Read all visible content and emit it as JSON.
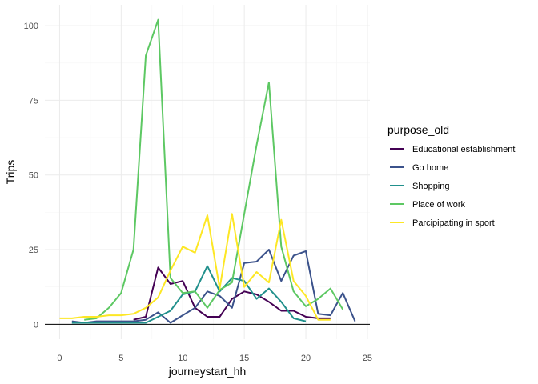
{
  "chart_data": {
    "type": "line",
    "xlabel": "journeystart_hh",
    "ylabel": "Trips",
    "xlim": [
      -1.2,
      25.2
    ],
    "ylim": [
      -5,
      107
    ],
    "x_ticks": [
      0,
      5,
      10,
      15,
      20,
      25
    ],
    "y_ticks": [
      0,
      25,
      50,
      75,
      100
    ],
    "grid": true,
    "legend": {
      "title": "purpose_old",
      "position": "right"
    },
    "series": [
      {
        "name": "Educational establishment",
        "color": "#440154",
        "x": [
          6,
          7,
          8,
          9,
          10,
          11,
          12,
          13,
          14,
          15,
          16,
          17,
          18,
          19,
          20,
          21,
          22
        ],
        "y": [
          1.5,
          2.5,
          19,
          13.5,
          14.5,
          5.5,
          2.5,
          2.5,
          8.5,
          11,
          10,
          7.5,
          4.5,
          4.5,
          2.5,
          2,
          2
        ]
      },
      {
        "name": "Go home",
        "color": "#3b528b",
        "x": [
          1,
          2,
          3,
          4,
          5,
          6,
          7,
          8,
          9,
          10,
          11,
          12,
          13,
          14,
          15,
          16,
          17,
          18,
          19,
          20,
          21,
          22,
          23,
          24
        ],
        "y": [
          1,
          0.5,
          1,
          1,
          1,
          1,
          1.5,
          4,
          0.5,
          3,
          5.5,
          11,
          9.5,
          5.5,
          20.5,
          21,
          25,
          14.5,
          23,
          24.5,
          3.5,
          3,
          10.5,
          1
        ]
      },
      {
        "name": "Shopping",
        "color": "#21908c",
        "x": [
          1,
          2,
          3,
          4,
          5,
          6,
          7,
          8,
          9,
          10,
          11,
          12,
          13,
          14,
          15,
          16,
          17,
          18,
          19,
          20
        ],
        "y": [
          0.5,
          0.5,
          0.5,
          0.5,
          0.5,
          0.5,
          0.5,
          2.5,
          4.5,
          10,
          11,
          19.5,
          11,
          15.5,
          14.5,
          8.5,
          12,
          7.5,
          2,
          1
        ]
      },
      {
        "name": "Place of work",
        "color": "#5dc863",
        "x": [
          2,
          3,
          4,
          5,
          6,
          7,
          8,
          9,
          10,
          11,
          12,
          13,
          14,
          15,
          16,
          17,
          18,
          19,
          20,
          21,
          22,
          23
        ],
        "y": [
          1.5,
          2,
          5.5,
          10.5,
          25,
          90,
          102,
          15.5,
          10.5,
          11,
          5.5,
          11.5,
          14,
          37,
          60,
          81,
          26,
          11,
          6,
          8.5,
          12,
          5
        ]
      },
      {
        "name": "Parcipipating in sport",
        "color": "#fde725",
        "x": [
          0,
          1,
          2,
          3,
          4,
          5,
          6,
          7,
          8,
          9,
          10,
          11,
          12,
          13,
          14,
          15,
          16,
          17,
          18,
          19,
          20,
          21,
          22
        ],
        "y": [
          2,
          2,
          2.5,
          2.5,
          3,
          3,
          3.5,
          5.5,
          9,
          18,
          26,
          24,
          36.5,
          12,
          37,
          12.5,
          17.5,
          14,
          35,
          14.5,
          9.5,
          1.5,
          1.5
        ]
      }
    ]
  }
}
